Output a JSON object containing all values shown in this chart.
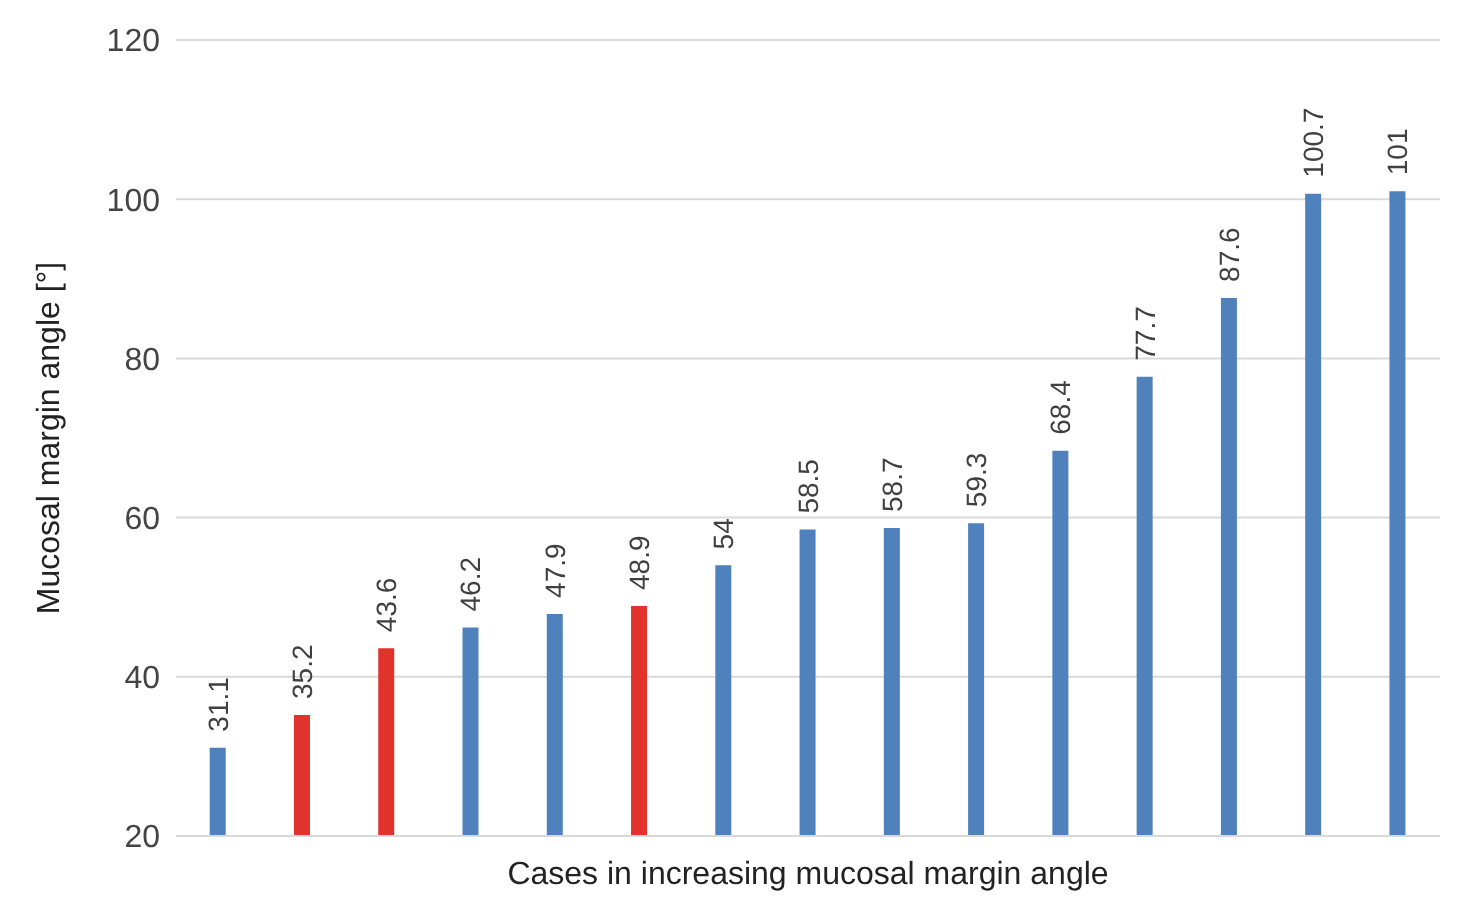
{
  "chart_data": {
    "type": "bar",
    "xlabel": "Cases in increasing mucosal margin angle",
    "ylabel": "Mucosal margin angle [°]",
    "categories": [
      null,
      null,
      null,
      null,
      null,
      null,
      null,
      null,
      null,
      null,
      null,
      null,
      null,
      null,
      null
    ],
    "values": [
      31.1,
      35.2,
      43.6,
      46.2,
      47.9,
      48.9,
      54,
      58.5,
      58.7,
      59.3,
      68.4,
      77.7,
      87.6,
      100.7,
      101
    ],
    "colors": [
      "#4f81bd",
      "#e0332b",
      "#e0332b",
      "#4f81bd",
      "#4f81bd",
      "#e0332b",
      "#4f81bd",
      "#4f81bd",
      "#4f81bd",
      "#4f81bd",
      "#4f81bd",
      "#4f81bd",
      "#4f81bd",
      "#4f81bd",
      "#4f81bd"
    ],
    "ylim": [
      20,
      120
    ],
    "yticks": [
      20,
      40,
      60,
      80,
      100,
      120
    ],
    "grid": "y",
    "data_labels": true
  }
}
